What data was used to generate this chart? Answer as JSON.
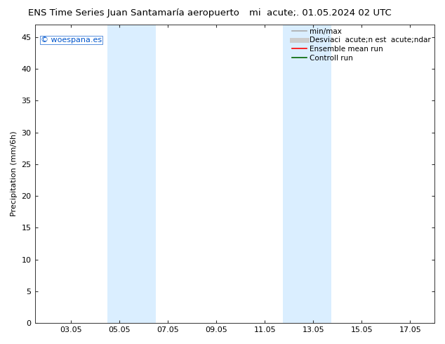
{
  "title_left": "ENS Time Series Juan Santamaría aeropuerto",
  "title_right": "mi  acute;. 01.05.2024 02 UTC",
  "ylabel": "Precipitation (mm/6h)",
  "watermark": "© woespana.es",
  "watermark_color": "#0055cc",
  "xtick_labels": [
    "03.05",
    "05.05",
    "07.05",
    "09.05",
    "11.05",
    "13.05",
    "15.05",
    "17.05"
  ],
  "xtick_positions": [
    2,
    4,
    6,
    8,
    10,
    12,
    14,
    16
  ],
  "ytick_labels": [
    "0",
    "5",
    "10",
    "15",
    "20",
    "25",
    "30",
    "35",
    "40",
    "45"
  ],
  "ytick_positions": [
    0,
    5,
    10,
    15,
    20,
    25,
    30,
    35,
    40,
    45
  ],
  "ylim": [
    0,
    47
  ],
  "xlim": [
    0.5,
    17.0
  ],
  "shaded_regions": [
    {
      "xstart": 3.5,
      "xend": 5.5,
      "color": "#daeeff"
    },
    {
      "xstart": 10.75,
      "xend": 12.75,
      "color": "#daeeff"
    }
  ],
  "legend_entries": [
    {
      "label": "min/max",
      "color": "#aaaaaa",
      "lw": 1.2
    },
    {
      "label": "Desviaci  acute;n est  acute;ndar",
      "color": "#cccccc",
      "lw": 5
    },
    {
      "label": "Ensemble mean run",
      "color": "#ff0000",
      "lw": 1.2
    },
    {
      "label": "Controll run",
      "color": "#006600",
      "lw": 1.2
    }
  ],
  "bg_color": "#ffffff",
  "plot_bg_color": "#ffffff",
  "spine_color": "#333333",
  "font_size": 8,
  "title_fontsize": 9.5
}
